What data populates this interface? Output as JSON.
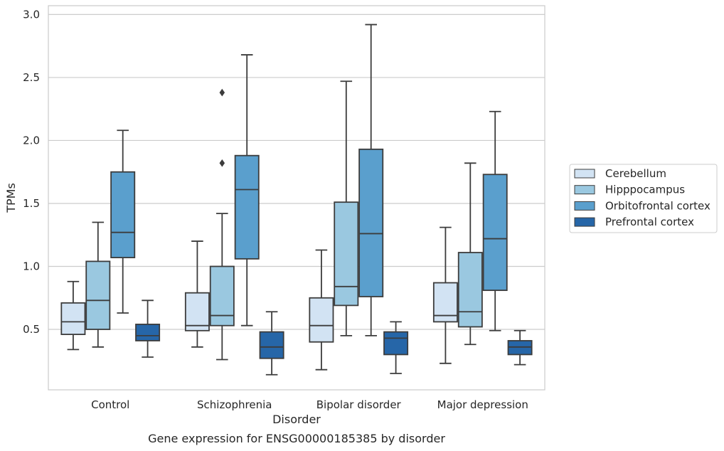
{
  "chart_data": {
    "type": "box",
    "xlabel": "Disorder",
    "ylabel": "TPMs",
    "caption": "Gene expression for ENSG00000185385 by disorder",
    "categories": [
      "Control",
      "Schizophrenia",
      "Bipolar disorder",
      "Major depression"
    ],
    "yticks": [
      "0.5",
      "1.0",
      "1.5",
      "2.0",
      "2.5",
      "3.0"
    ],
    "ylim": [
      0.02,
      3.07
    ],
    "grid": true,
    "legend_position": "right",
    "series": [
      {
        "name": "Cerebellum",
        "color": "#d2e3f3",
        "boxes": [
          {
            "whislo": 0.34,
            "q1": 0.46,
            "med": 0.56,
            "q3": 0.71,
            "whishi": 0.88,
            "fliers": []
          },
          {
            "whislo": 0.36,
            "q1": 0.49,
            "med": 0.53,
            "q3": 0.79,
            "whishi": 1.2,
            "fliers": []
          },
          {
            "whislo": 0.18,
            "q1": 0.4,
            "med": 0.53,
            "q3": 0.75,
            "whishi": 1.13,
            "fliers": []
          },
          {
            "whislo": 0.23,
            "q1": 0.56,
            "med": 0.61,
            "q3": 0.87,
            "whishi": 1.31,
            "fliers": []
          }
        ]
      },
      {
        "name": "Hipppocampus",
        "color": "#9ac8e0",
        "boxes": [
          {
            "whislo": 0.36,
            "q1": 0.5,
            "med": 0.73,
            "q3": 1.04,
            "whishi": 1.35,
            "fliers": []
          },
          {
            "whislo": 0.26,
            "q1": 0.53,
            "med": 0.61,
            "q3": 1.0,
            "whishi": 1.42,
            "fliers": [
              1.82,
              2.38
            ]
          },
          {
            "whislo": 0.45,
            "q1": 0.69,
            "med": 0.84,
            "q3": 1.51,
            "whishi": 2.47,
            "fliers": []
          },
          {
            "whislo": 0.38,
            "q1": 0.52,
            "med": 0.64,
            "q3": 1.11,
            "whishi": 1.82,
            "fliers": []
          }
        ]
      },
      {
        "name": "Orbitofrontal cortex",
        "color": "#5a9fcd",
        "boxes": [
          {
            "whislo": 0.63,
            "q1": 1.07,
            "med": 1.27,
            "q3": 1.75,
            "whishi": 2.08,
            "fliers": []
          },
          {
            "whislo": 0.53,
            "q1": 1.06,
            "med": 1.61,
            "q3": 1.88,
            "whishi": 2.68,
            "fliers": []
          },
          {
            "whislo": 0.45,
            "q1": 0.76,
            "med": 1.26,
            "q3": 1.93,
            "whishi": 2.92,
            "fliers": []
          },
          {
            "whislo": 0.49,
            "q1": 0.81,
            "med": 1.22,
            "q3": 1.73,
            "whishi": 2.23,
            "fliers": []
          }
        ]
      },
      {
        "name": "Prefrontal cortex",
        "color": "#2666a8",
        "boxes": [
          {
            "whislo": 0.28,
            "q1": 0.41,
            "med": 0.45,
            "q3": 0.54,
            "whishi": 0.73,
            "fliers": []
          },
          {
            "whislo": 0.14,
            "q1": 0.27,
            "med": 0.36,
            "q3": 0.48,
            "whishi": 0.64,
            "fliers": []
          },
          {
            "whislo": 0.15,
            "q1": 0.3,
            "med": 0.43,
            "q3": 0.48,
            "whishi": 0.56,
            "fliers": []
          },
          {
            "whislo": 0.22,
            "q1": 0.3,
            "med": 0.36,
            "q3": 0.41,
            "whishi": 0.49,
            "fliers": []
          }
        ]
      }
    ]
  }
}
